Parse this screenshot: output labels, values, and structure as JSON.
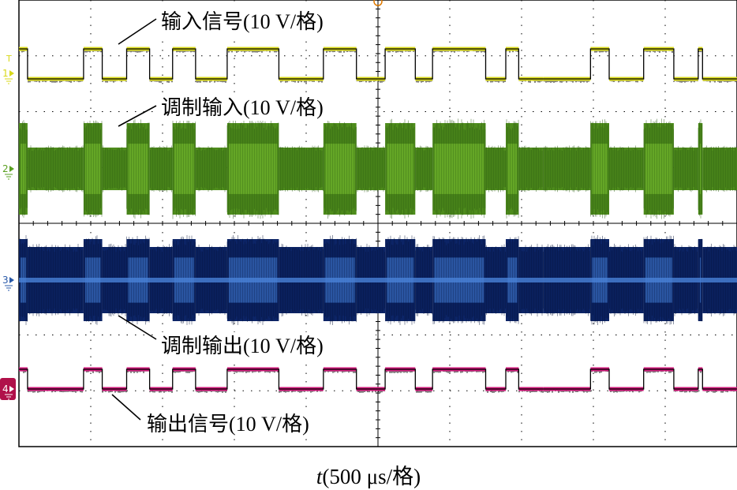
{
  "chart_data": {
    "type": "line",
    "title": "",
    "xlabel_var": "t",
    "xlabel_rest": "(500 μs/格)",
    "grid": true,
    "x_divisions": 10,
    "y_divisions": 8,
    "x_unit_per_div": "500 μs",
    "x_range_ms": [
      0,
      5.0
    ],
    "bit_edges_ms": [
      0.0,
      0.06,
      0.45,
      0.58,
      0.75,
      0.91,
      1.07,
      1.23,
      1.45,
      1.81,
      2.12,
      2.35,
      2.55,
      2.76,
      2.88,
      3.25,
      3.39,
      3.48,
      3.65,
      3.65,
      3.98,
      4.11,
      4.35,
      4.56,
      4.73,
      4.76,
      5.0
    ],
    "series": [
      {
        "name": "输入信号(10 V/格)",
        "channel": "1",
        "color": "#d8d81a",
        "kind": "digital",
        "bits": [
          1,
          0,
          1,
          0,
          1,
          0,
          1,
          0,
          1,
          0,
          1,
          0,
          1,
          0,
          1,
          0,
          1,
          0,
          1,
          0,
          1,
          0,
          1,
          0,
          1,
          0
        ],
        "amplitude_V": 10
      },
      {
        "name": "调制输入(10 V/格)",
        "channel": "2",
        "color": "#5aa020",
        "kind": "modulated"
      },
      {
        "name": "调制输出(10 V/格)",
        "channel": "3",
        "color": "#2858a8",
        "kind": "modulated"
      },
      {
        "name": "输出信号(10 V/格)",
        "channel": "4",
        "color": "#d0187a",
        "kind": "digital",
        "bits": [
          1,
          0,
          1,
          0,
          1,
          0,
          1,
          0,
          1,
          0,
          1,
          0,
          1,
          0,
          1,
          0,
          1,
          0,
          1,
          0,
          1,
          0,
          1,
          0,
          1,
          0
        ],
        "amplitude_V": 10
      }
    ],
    "channel_markers": [
      "1",
      "2",
      "3",
      "4"
    ],
    "trigger_marker": "T"
  }
}
